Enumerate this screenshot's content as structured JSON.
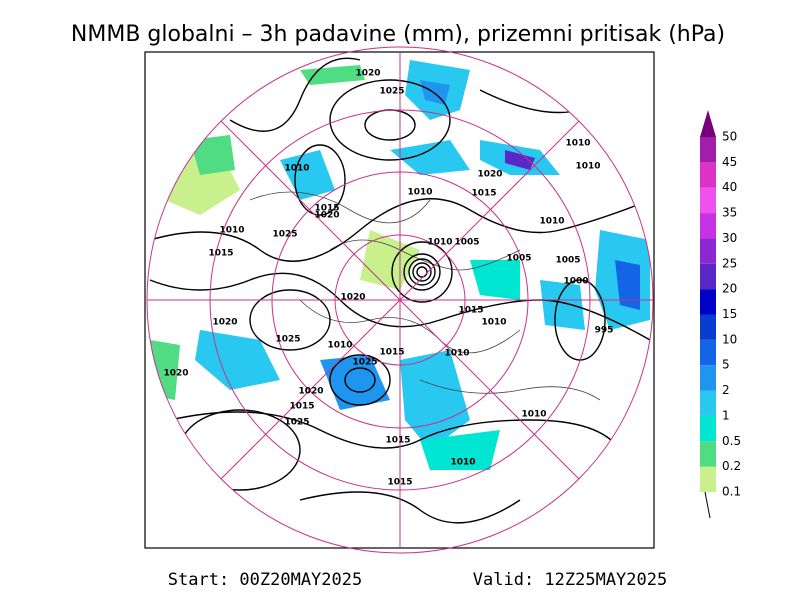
{
  "title": "NMMB globalni – 3h padavine (mm), prizemni pritisak (hPa)",
  "colorbar": {
    "labels": [
      0.1,
      0.2,
      0.5,
      1,
      2,
      5,
      10,
      15,
      20,
      25,
      30,
      35,
      40,
      45,
      50
    ],
    "colors": [
      "#c8f08c",
      "#50dc82",
      "#00e6d2",
      "#28c8f0",
      "#1e96f0",
      "#1464e6",
      "#0a3cd2",
      "#0000c8",
      "#5a28c8",
      "#8c28d2",
      "#c832e6",
      "#f050f0",
      "#dc32c8",
      "#a01eaa",
      "#780078"
    ]
  },
  "isobar_labels": [
    "1020",
    "1025",
    "1010",
    "1010",
    "1010",
    "1020",
    "1015",
    "1010",
    "1015",
    "1020",
    "1010",
    "1010",
    "1025",
    "1010",
    "1005",
    "1015",
    "1005",
    "1005",
    "1000",
    "1020",
    "1015",
    "1010",
    "1020",
    "995",
    "1025",
    "1010",
    "1015",
    "1010",
    "1025",
    "1020",
    "1020",
    "1015",
    "1025",
    "1010",
    "1015",
    "1010",
    "1015"
  ],
  "footer": {
    "start": "Start: 00Z20MAY2025",
    "valid": "Valid: 12Z25MAY2025"
  }
}
